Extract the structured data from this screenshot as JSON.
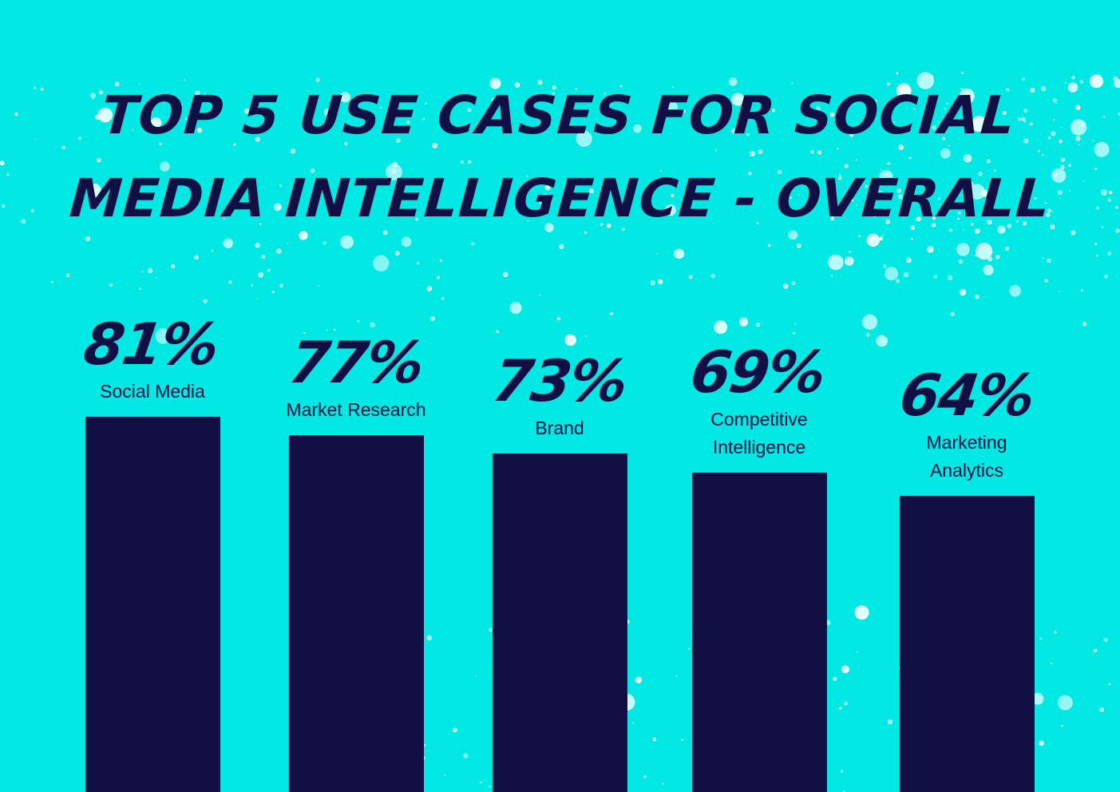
{
  "colors": {
    "background": "#00E8E3",
    "ink": "#120F45",
    "splatter": "#E9FFFF"
  },
  "title_lines": [
    "TOP 5 USE CASES FOR SOCIAL",
    "MEDIA INTELLIGENCE - OVERALL"
  ],
  "chart_data": {
    "type": "bar",
    "title": "TOP 5 USE CASES FOR SOCIAL MEDIA INTELLIGENCE - OVERALL",
    "categories": [
      [
        "Social Media"
      ],
      [
        "Market Research"
      ],
      [
        "Brand"
      ],
      [
        "Competitive",
        "Intelligence"
      ],
      [
        "Marketing",
        "Analytics"
      ]
    ],
    "values": [
      81,
      77,
      73,
      69,
      64
    ],
    "value_labels": [
      "81%",
      "77%",
      "73%",
      "69%",
      "64%"
    ],
    "unit": "%",
    "ylim": [
      0,
      100
    ],
    "grid": false,
    "legend": "none"
  }
}
